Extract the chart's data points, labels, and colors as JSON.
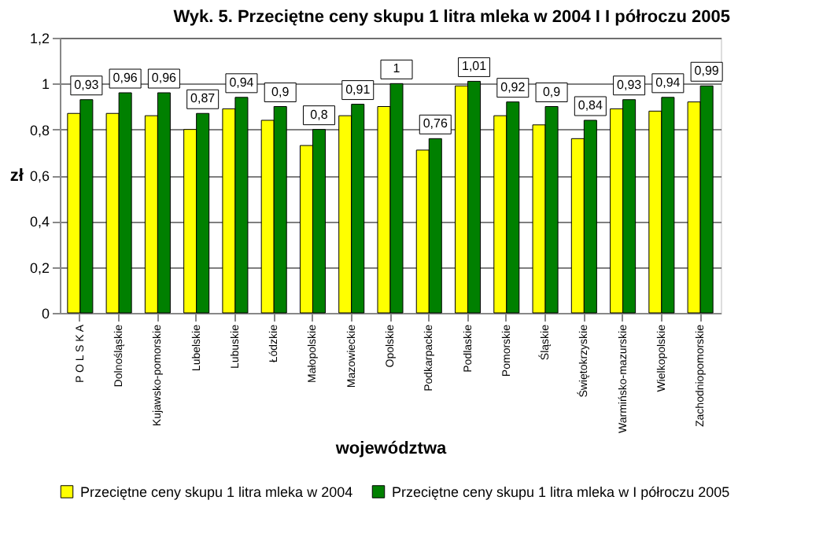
{
  "chart_data": {
    "type": "bar",
    "title": "Wyk. 5. Przeciętne ceny skupu 1 litra mleka w 2004 I I półroczu 2005",
    "xlabel": "województwa",
    "ylabel": "zł",
    "categories": [
      "P O L S K A",
      "Dolnośląskie",
      "Kujawsko-pomorskie",
      "Lubelskie",
      "Lubuskie",
      "Łódzkie",
      "Małopolskie",
      "Mazowieckie",
      "Opolskie",
      "Podkarpackie",
      "Podlaskie",
      "Pomorskie",
      "Śląskie",
      "Świętokrzyskie",
      "Warmińsko-mazurskie",
      "Wielkopolskie",
      "Zachodniopomorskie"
    ],
    "series": [
      {
        "name": "Przeciętne ceny skupu 1 litra mleka w 2004",
        "color": "#ffff00",
        "values": [
          0.87,
          0.87,
          0.86,
          0.8,
          0.89,
          0.84,
          0.73,
          0.86,
          0.9,
          0.71,
          0.99,
          0.86,
          0.82,
          0.76,
          0.89,
          0.88,
          0.92
        ]
      },
      {
        "name": "Przeciętne ceny skupu 1 litra mleka w I półroczu 2005",
        "color": "#008000",
        "values": [
          0.93,
          0.96,
          0.96,
          0.87,
          0.94,
          0.9,
          0.8,
          0.91,
          1,
          0.76,
          1.01,
          0.92,
          0.9,
          0.84,
          0.93,
          0.94,
          0.99
        ],
        "value_labels": [
          "0,93",
          "0,96",
          "0,96",
          "0,87",
          "0,94",
          "0,9",
          "0,8",
          "0,91",
          "1",
          "0,76",
          "1,01",
          "0,92",
          "0,9",
          "0,84",
          "0,93",
          "0,94",
          "0,99"
        ]
      }
    ],
    "ylim": [
      0,
      1.2
    ],
    "yticks": [
      0,
      {
        "value": 0.2,
        "label": "0,2"
      },
      {
        "value": 0.4,
        "label": "0,4"
      },
      {
        "value": 0.6,
        "label": "0,6"
      },
      {
        "value": 0.8,
        "label": "0,8"
      },
      1,
      {
        "value": 1.2,
        "label": "1,2"
      }
    ],
    "grid": "y",
    "legend": "bottom"
  }
}
